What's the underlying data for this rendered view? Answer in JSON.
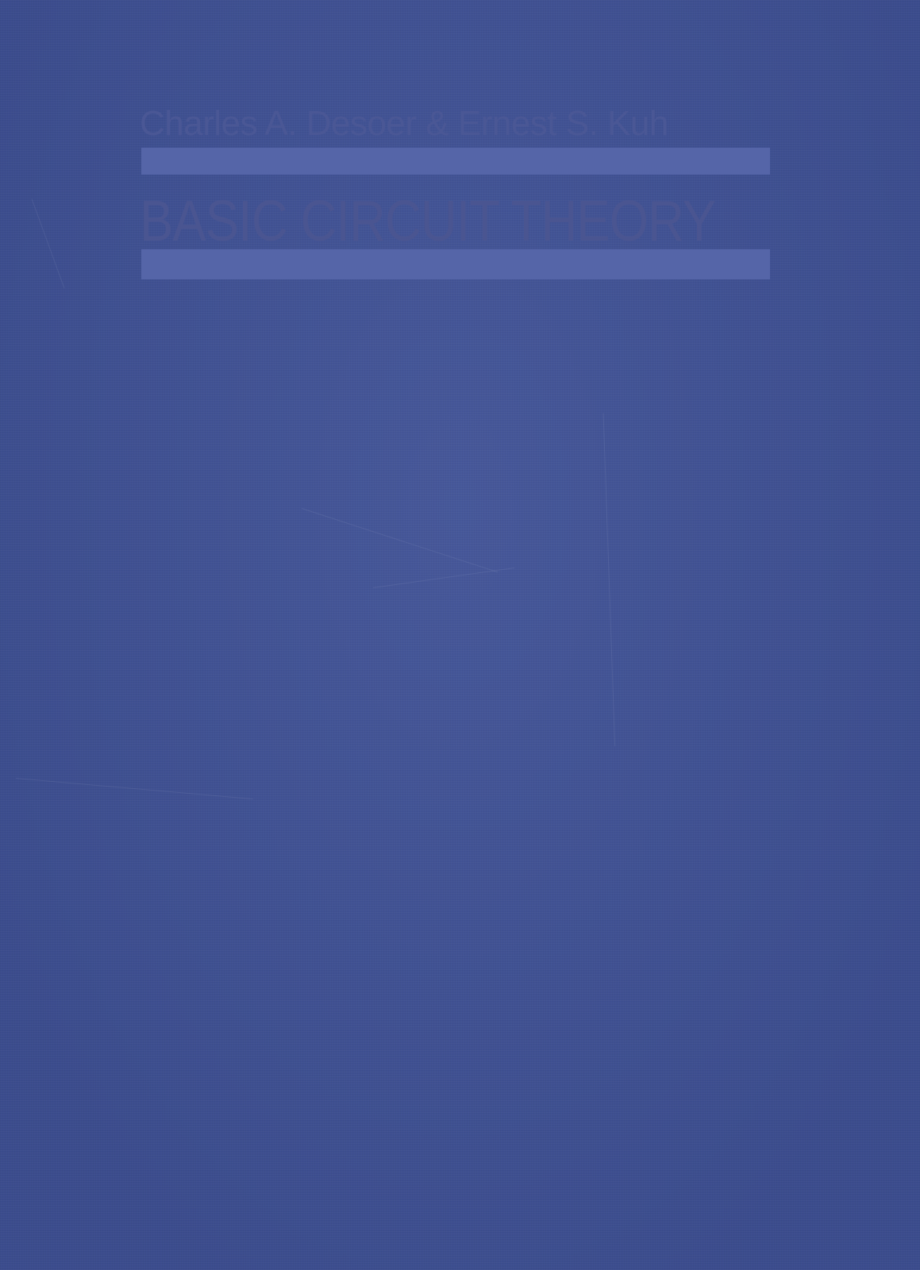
{
  "cover": {
    "authors": "Charles A. Desoer & Ernest S. Kuh",
    "title": "BASIC CIRCUIT THEORY",
    "colors": {
      "background": "#3f5196",
      "rule": "#5565a8",
      "text": "#4a5591"
    }
  }
}
